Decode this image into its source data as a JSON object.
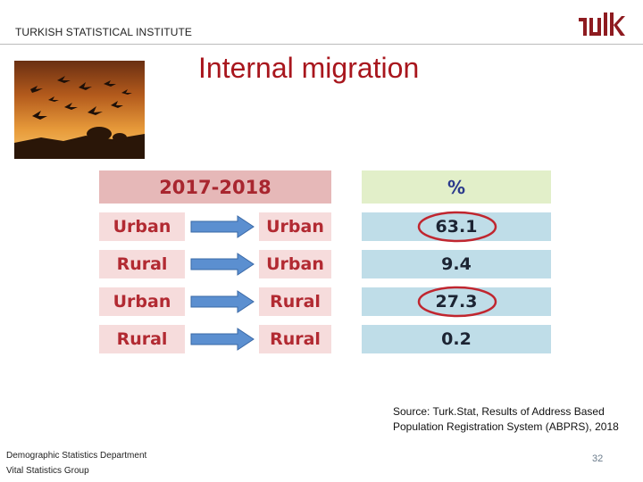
{
  "header": {
    "organization": "TURKISH STATISTICAL INSTITUTE"
  },
  "slide": {
    "title": "Internal migration"
  },
  "table": {
    "period_header": "2017-2018",
    "value_header": "%",
    "rows": [
      {
        "from": "Urban",
        "to": "Urban",
        "value": "63.1",
        "highlighted": true
      },
      {
        "from": "Rural",
        "to": "Urban",
        "value": "9.4",
        "highlighted": false
      },
      {
        "from": "Urban",
        "to": "Rural",
        "value": "27.3",
        "highlighted": true
      },
      {
        "from": "Rural",
        "to": "Rural",
        "value": "0.2",
        "highlighted": false
      }
    ]
  },
  "source": {
    "line1": "Source: Turk.Stat, Results of Address Based",
    "line2": "Population Registration System (ABPRS), 2018"
  },
  "footer": {
    "department": "Demographic Statistics Department",
    "group": "Vital Statistics Group",
    "page_number": "32"
  },
  "icons": {
    "logo": "tuik-logo",
    "arrow": "right-arrow-icon",
    "photo": "flying-birds-sunset-photo"
  },
  "colors": {
    "title": "#a8161d",
    "highlight_ring": "#c0262f",
    "arrow_fill": "#5b8fd0"
  }
}
